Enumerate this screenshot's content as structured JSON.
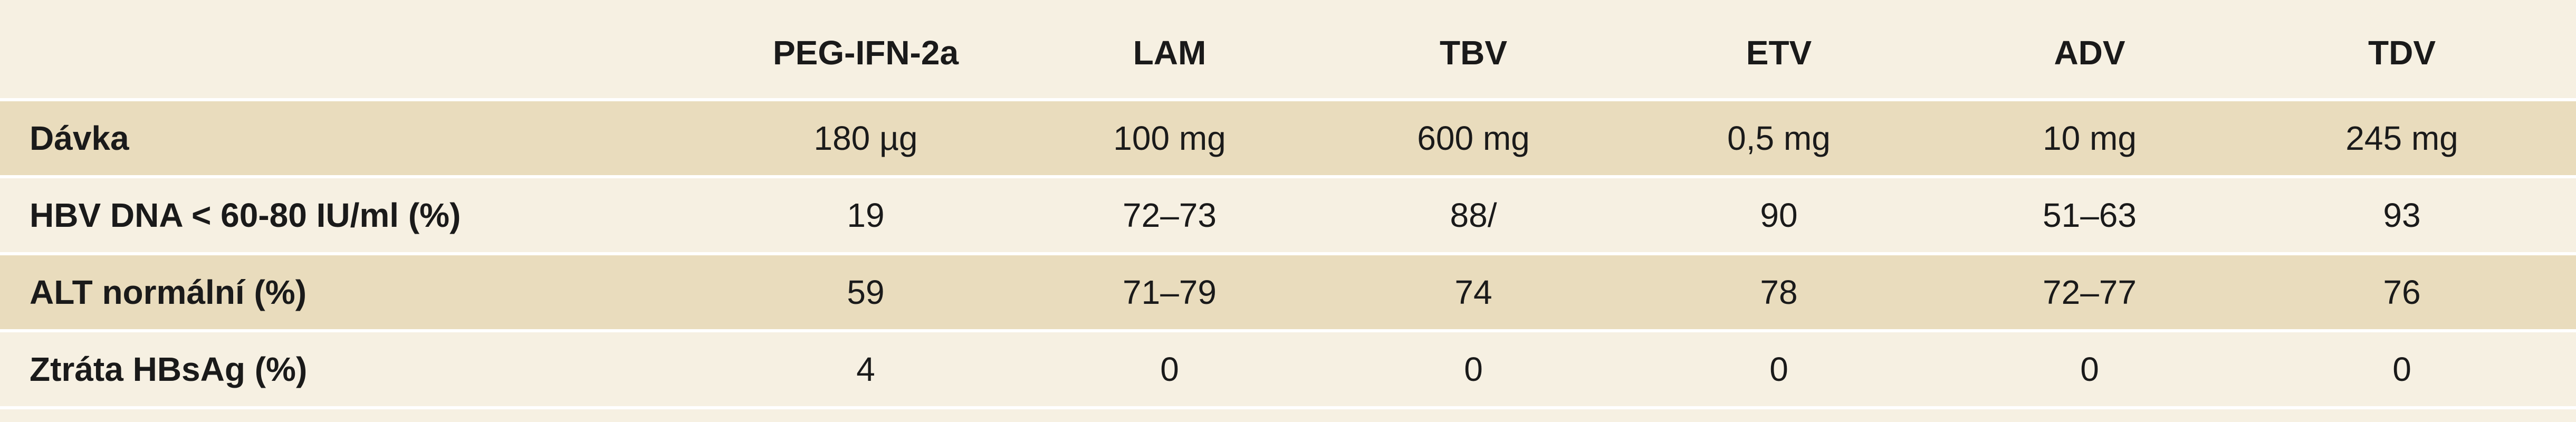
{
  "table": {
    "columns": [
      "PEG-IFN-2a",
      "LAM",
      "TBV",
      "ETV",
      "ADV",
      "TDV"
    ],
    "rows": [
      {
        "label": "Dávka",
        "cells": [
          "180 µg",
          "100 mg",
          "600 mg",
          "0,5 mg",
          "10 mg",
          "245 mg"
        ]
      },
      {
        "label": "HBV DNA < 60-80 IU/ml (%)",
        "cells": [
          "19",
          "72–73",
          "88/",
          "90",
          "51–63",
          "93"
        ]
      },
      {
        "label": "ALT normální (%)",
        "cells": [
          "59",
          "71–79",
          "74",
          "78",
          "72–77",
          "76"
        ]
      },
      {
        "label": "Ztráta HBsAg (%)",
        "cells": [
          "4",
          "0",
          "0",
          "0",
          "0",
          "0"
        ]
      }
    ]
  }
}
